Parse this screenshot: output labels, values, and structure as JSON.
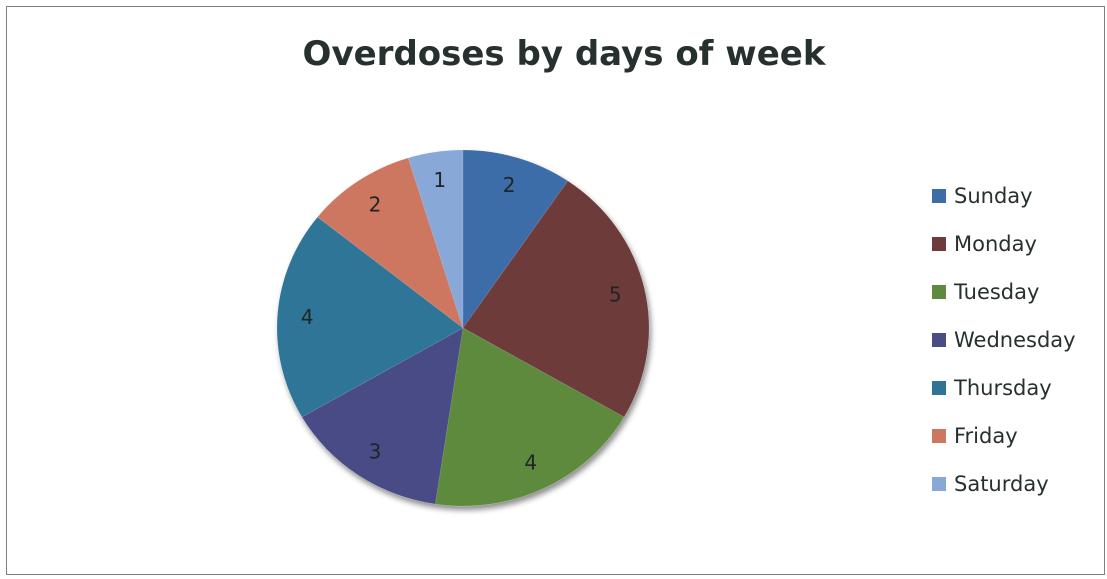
{
  "chart_data": {
    "type": "pie",
    "title": "Overdoses by days of week",
    "categories": [
      "Sunday",
      "Monday",
      "Tuesday",
      "Wednesday",
      "Thursday",
      "Friday",
      "Saturday"
    ],
    "values": [
      2,
      5,
      4,
      3,
      4,
      2,
      1
    ],
    "colors": [
      "#3d6da8",
      "#6e3a3a",
      "#5d8a3e",
      "#4a4c86",
      "#2f7497",
      "#cd7760",
      "#88a8d8"
    ],
    "start_angle": "12 o'clock",
    "direction": "clockwise",
    "data_labels": "inside slices",
    "legend": "right"
  }
}
